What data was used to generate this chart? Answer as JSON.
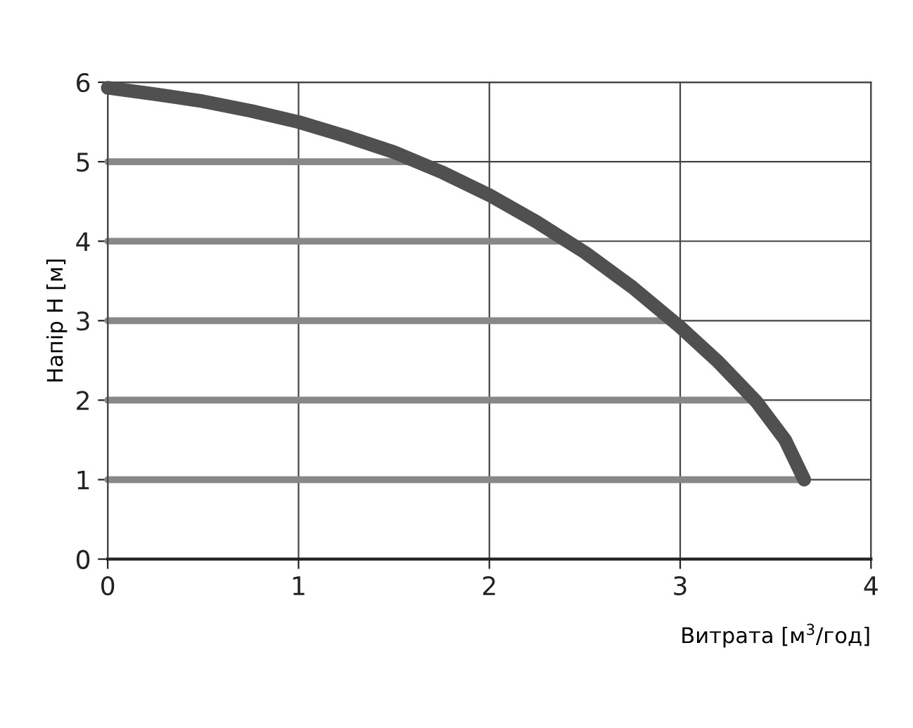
{
  "chart_data": {
    "type": "line",
    "xlabel": "Витрата [м$^{3}$/год]",
    "ylabel": "Напір H [м]",
    "xlim": [
      0,
      4
    ],
    "ylim": [
      0,
      6
    ],
    "xticks": [
      0,
      1,
      2,
      3,
      4
    ],
    "yticks": [
      0,
      1,
      2,
      3,
      4,
      5,
      6
    ],
    "grid": true,
    "series": [
      {
        "color": "#888888",
        "x": [
          0,
          1.6
        ],
        "values": [
          5,
          5
        ]
      },
      {
        "color": "#888888",
        "x": [
          0,
          2.4
        ],
        "values": [
          4,
          4
        ]
      },
      {
        "color": "#888888",
        "x": [
          0,
          2.95
        ],
        "values": [
          3,
          3
        ]
      },
      {
        "color": "#888888",
        "x": [
          0,
          3.38
        ],
        "values": [
          2,
          2
        ]
      },
      {
        "color": "#888888",
        "x": [
          0,
          3.65
        ],
        "values": [
          1,
          1
        ]
      },
      {
        "color": "#505050",
        "x": [
          0,
          0.25,
          0.5,
          0.75,
          1,
          1.25,
          1.5,
          1.75,
          2,
          2.25,
          2.5,
          2.75,
          3,
          3.2,
          3.4,
          3.55,
          3.65
        ],
        "values": [
          5.93,
          5.85,
          5.76,
          5.64,
          5.5,
          5.32,
          5.12,
          4.87,
          4.58,
          4.24,
          3.86,
          3.42,
          2.92,
          2.48,
          1.98,
          1.5,
          1.0
        ]
      }
    ]
  }
}
